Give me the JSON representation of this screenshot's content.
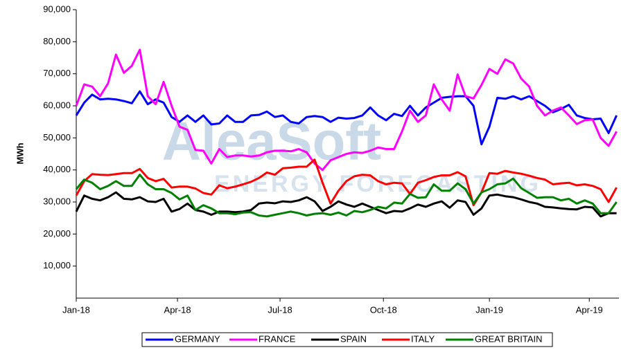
{
  "chart_data": {
    "type": "line",
    "y_label": "MWh",
    "watermark": [
      "AleaSoft",
      "ENERGY FORECASTING"
    ],
    "x": [
      0,
      1,
      2,
      3,
      4,
      5,
      6,
      7,
      8,
      9,
      10,
      11,
      12,
      13,
      14,
      15,
      16,
      17,
      18,
      19,
      20,
      21,
      22,
      23,
      24,
      25,
      26,
      27,
      28,
      29,
      30,
      31,
      32,
      33,
      34,
      35,
      36,
      37,
      38,
      39,
      40,
      41,
      42,
      43,
      44,
      45,
      46,
      47,
      48,
      49,
      50,
      51,
      52,
      53,
      54,
      55,
      56,
      57,
      58,
      59,
      60,
      61,
      62,
      63,
      64,
      65,
      66,
      67,
      68
    ],
    "xlim": [
      0,
      68.3
    ],
    "xticks": [
      {
        "value": 0,
        "label": "Jan-18"
      },
      {
        "value": 12.74,
        "label": "Apr-18"
      },
      {
        "value": 25.65,
        "label": "Jul-18"
      },
      {
        "value": 38.66,
        "label": "Oct-18"
      },
      {
        "value": 52,
        "label": "Jan-19"
      },
      {
        "value": 64.57,
        "label": "Apr-19"
      }
    ],
    "ylim": [
      0,
      90000
    ],
    "yticks": [
      {
        "value": 10000,
        "label": "10,000"
      },
      {
        "value": 20000,
        "label": "20,000"
      },
      {
        "value": 30000,
        "label": "30,000"
      },
      {
        "value": 40000,
        "label": "40,000"
      },
      {
        "value": 50000,
        "label": "50,000"
      },
      {
        "value": 60000,
        "label": "60,000"
      },
      {
        "value": 70000,
        "label": "70,000"
      },
      {
        "value": 80000,
        "label": "80,000"
      },
      {
        "value": 90000,
        "label": "90,000"
      }
    ],
    "legend": "bottom",
    "series": [
      {
        "name": "GERMANY",
        "color": "#0000ff",
        "values": [
          57000,
          61000,
          63500,
          62000,
          62200,
          62000,
          61500,
          60800,
          64500,
          60500,
          62000,
          61000,
          56500,
          55000,
          57000,
          55000,
          57000,
          54200,
          54500,
          57000,
          55000,
          55000,
          57000,
          57200,
          58200,
          56500,
          57000,
          55000,
          54500,
          56500,
          56800,
          56500,
          55000,
          56300,
          56000,
          56200,
          57000,
          59500,
          57000,
          55500,
          57500,
          56800,
          60000,
          57000,
          59500,
          61000,
          62500,
          62800,
          63000,
          63000,
          60000,
          48000,
          53500,
          62500,
          62200,
          63000,
          62000,
          63000,
          61500,
          60000,
          58000,
          59000,
          60300,
          57000,
          56200,
          55800,
          56000,
          51500,
          57000
        ]
      },
      {
        "name": "FRANCE",
        "color": "#ff00ff",
        "values": [
          60000,
          66700,
          66000,
          63000,
          67000,
          76000,
          70300,
          72500,
          77500,
          63000,
          60500,
          67500,
          60000,
          53500,
          52500,
          46200,
          46000,
          42000,
          46500,
          44000,
          44500,
          44500,
          44200,
          44500,
          45500,
          46000,
          46000,
          45800,
          46500,
          45500,
          42000,
          40000,
          43000,
          44000,
          45000,
          45500,
          45300,
          46000,
          47000,
          46500,
          46500,
          52000,
          58500,
          55000,
          57000,
          66700,
          62000,
          58500,
          69800,
          63000,
          62300,
          66500,
          71500,
          70000,
          74500,
          73200,
          68500,
          66000,
          60000,
          57000,
          58500,
          59500,
          57000,
          54300,
          55500,
          55700,
          50000,
          47500,
          52000
        ]
      },
      {
        "name": "SPAIN",
        "color": "#000000",
        "values": [
          27000,
          32000,
          31000,
          30500,
          31500,
          33000,
          31000,
          30800,
          31500,
          30200,
          30000,
          31000,
          27000,
          27800,
          29500,
          27500,
          27000,
          26000,
          27000,
          27000,
          26800,
          27000,
          27500,
          29500,
          29800,
          29600,
          30200,
          30000,
          30500,
          31500,
          30200,
          27200,
          28500,
          30200,
          29200,
          28500,
          29500,
          28500,
          27500,
          26500,
          27200,
          27000,
          28000,
          29200,
          28500,
          29500,
          30200,
          28200,
          30500,
          30000,
          26000,
          28000,
          32000,
          32300,
          31800,
          31500,
          30800,
          30000,
          29500,
          28500,
          28300,
          28000,
          27800,
          27700,
          28500,
          28300,
          25500,
          26500,
          26500
        ]
      },
      {
        "name": "ITALY",
        "color": "#ff0000",
        "values": [
          32000,
          36500,
          38700,
          38500,
          38400,
          38700,
          39000,
          39000,
          40300,
          37500,
          36500,
          37200,
          34500,
          34800,
          34800,
          34200,
          32800,
          32300,
          35200,
          34300,
          34800,
          35500,
          36300,
          37500,
          39200,
          38500,
          40500,
          40700,
          41000,
          41000,
          43200,
          36000,
          29500,
          33500,
          36500,
          38000,
          38500,
          38300,
          36500,
          35500,
          36000,
          35800,
          32500,
          36000,
          36800,
          37800,
          38300,
          38300,
          39300,
          38000,
          29000,
          33000,
          39000,
          38800,
          39700,
          39200,
          38800,
          38200,
          37500,
          37000,
          35500,
          35800,
          36000,
          35200,
          35500,
          35000,
          34000,
          30000,
          34500
        ]
      },
      {
        "name": "GREAT BRITAIN",
        "color": "#008000",
        "values": [
          34000,
          37000,
          36000,
          34000,
          35000,
          36500,
          35000,
          35000,
          38500,
          35500,
          34000,
          34000,
          32800,
          30800,
          32000,
          27500,
          29000,
          28000,
          26500,
          26500,
          26200,
          26700,
          26800,
          25800,
          25500,
          26000,
          26500,
          27000,
          26500,
          25800,
          26300,
          26500,
          26000,
          26700,
          25800,
          27200,
          26800,
          27500,
          28500,
          28000,
          29800,
          29500,
          32500,
          31300,
          31500,
          35500,
          33500,
          33500,
          35800,
          34000,
          29500,
          33000,
          34000,
          35500,
          35800,
          37300,
          34300,
          32800,
          31300,
          31500,
          31500,
          30500,
          31000,
          29500,
          30500,
          29500,
          26500,
          26500,
          30000
        ]
      }
    ]
  }
}
